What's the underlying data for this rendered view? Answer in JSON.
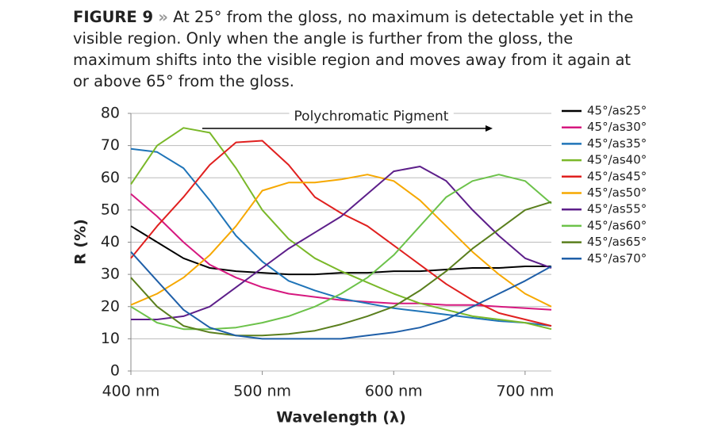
{
  "chart_data": {
    "type": "line",
    "figure_label": "FIGURE 9",
    "separator": "»",
    "title": "At 25° from the gloss, no maximum is detectable yet in the visible region. Only when the angle is further from the gloss, the maximum shifts into the visible region and moves away from it again at or above 65° from the gloss.",
    "annotation": "Polychromatic Pigment",
    "x_label": "Wavelength (λ)",
    "y_label": "R (%)",
    "x": [
      400,
      420,
      440,
      460,
      480,
      500,
      520,
      540,
      560,
      580,
      600,
      620,
      640,
      660,
      680,
      700,
      720
    ],
    "xlim": [
      400,
      720
    ],
    "xticks": [
      {
        "value": 400,
        "label": "400 nm"
      },
      {
        "value": 500,
        "label": "500 nm"
      },
      {
        "value": 600,
        "label": "600 nm"
      },
      {
        "value": 700,
        "label": "700 nm"
      }
    ],
    "ylim": [
      0,
      80
    ],
    "yticks": [
      0,
      10,
      20,
      30,
      40,
      50,
      60,
      70,
      80
    ],
    "grid": true,
    "legend": "right",
    "series": [
      {
        "name": "45°/as25°",
        "color": "#000000",
        "values": [
          45,
          40,
          35,
          32,
          31,
          30.5,
          30,
          30,
          30.5,
          30.5,
          31,
          31,
          31.5,
          32,
          32,
          32.5,
          32.5
        ]
      },
      {
        "name": "45°/as30°",
        "color": "#d6187f",
        "values": [
          55,
          48,
          40,
          33,
          29,
          26,
          24,
          23,
          22,
          21.5,
          21,
          21,
          20.5,
          20.5,
          20,
          19.5,
          19
        ]
      },
      {
        "name": "45°/as35°",
        "color": "#1f74b8",
        "values": [
          69,
          68,
          63,
          53,
          42,
          34,
          28,
          25,
          22.5,
          21,
          19.5,
          18.5,
          17.5,
          16.5,
          15.5,
          15,
          14
        ]
      },
      {
        "name": "45°/as40°",
        "color": "#7ab829",
        "values": [
          58,
          70,
          75.5,
          74,
          63,
          50,
          41,
          35,
          31,
          27.5,
          24,
          21,
          19,
          17,
          16,
          15,
          13
        ]
      },
      {
        "name": "45°/as45°",
        "color": "#e0201f",
        "values": [
          35,
          45,
          54,
          64,
          71,
          71.5,
          64,
          54,
          49,
          45,
          39,
          33,
          27,
          22,
          18,
          16,
          14
        ]
      },
      {
        "name": "45°/as50°",
        "color": "#f6a800",
        "values": [
          20.5,
          24,
          29,
          36,
          45,
          56,
          58.5,
          58.5,
          59.5,
          61,
          59,
          53,
          45,
          37,
          30,
          24,
          20
        ]
      },
      {
        "name": "45°/as55°",
        "color": "#5d1f8a",
        "values": [
          16,
          16,
          17,
          20,
          26,
          32,
          38,
          43,
          48,
          55,
          62,
          63.5,
          59,
          50,
          42,
          35,
          32
        ]
      },
      {
        "name": "45°/as60°",
        "color": "#6cc24a",
        "values": [
          20,
          15,
          13,
          13,
          13.5,
          15,
          17,
          20,
          24,
          29,
          36,
          45,
          54,
          59,
          61,
          59,
          52
        ]
      },
      {
        "name": "45°/as65°",
        "color": "#5a7f1d",
        "values": [
          29,
          20,
          14,
          12,
          11,
          11,
          11.5,
          12.5,
          14.5,
          17,
          20,
          25,
          31,
          38,
          44,
          50,
          52.5
        ]
      },
      {
        "name": "45°/as70°",
        "color": "#1f5fa8",
        "values": [
          37,
          28,
          19,
          13.5,
          11,
          10,
          10,
          10,
          10,
          11,
          12,
          13.5,
          16,
          20,
          24,
          28,
          32.5
        ]
      }
    ]
  }
}
